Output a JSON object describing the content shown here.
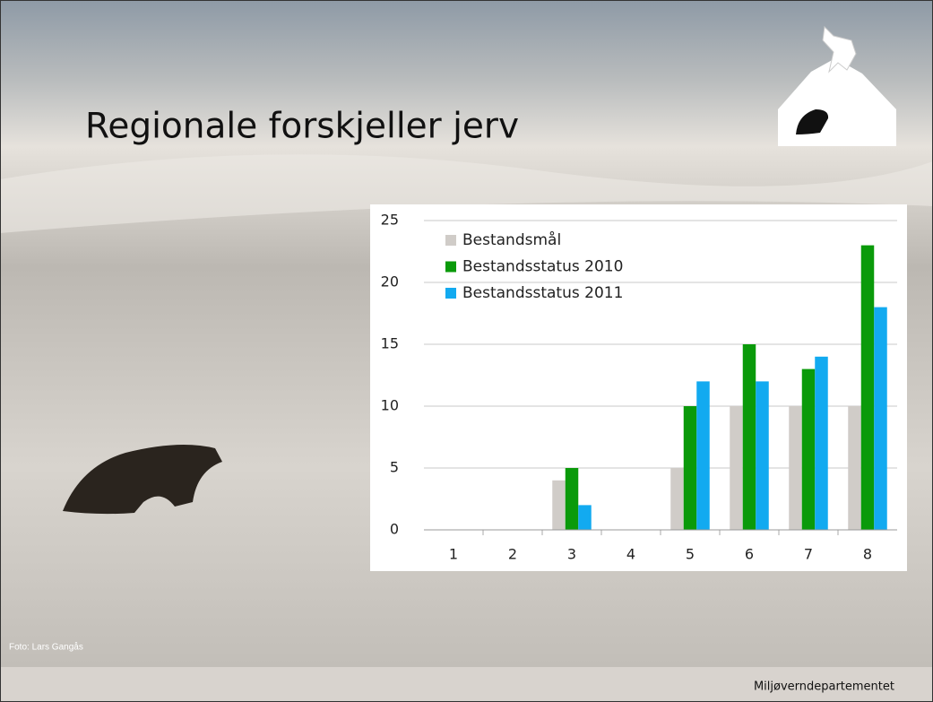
{
  "slide": {
    "title": "Regionale forskjeller jerv",
    "photo_credit": "Foto: Lars Gangås",
    "footer": "Miljøverndepartementet"
  },
  "chart_data": {
    "type": "bar",
    "categories": [
      "1",
      "2",
      "3",
      "4",
      "5",
      "6",
      "7",
      "8"
    ],
    "series": [
      {
        "name": "Bestandsmål",
        "color": "#d0ccc8",
        "values": [
          0,
          0,
          4,
          0,
          5,
          10,
          10,
          10
        ]
      },
      {
        "name": "Bestandsstatus 2010",
        "color": "#0a9a0a",
        "values": [
          0,
          0,
          5,
          0,
          10,
          15,
          13,
          23
        ]
      },
      {
        "name": "Bestandsstatus 2011",
        "color": "#12aaf0",
        "values": [
          0,
          0,
          2,
          0,
          12,
          12,
          14,
          18
        ]
      }
    ],
    "ylim": [
      0,
      25
    ],
    "yticks": [
      0,
      5,
      10,
      15,
      20,
      25
    ],
    "grid": true,
    "legend": "top-left"
  }
}
